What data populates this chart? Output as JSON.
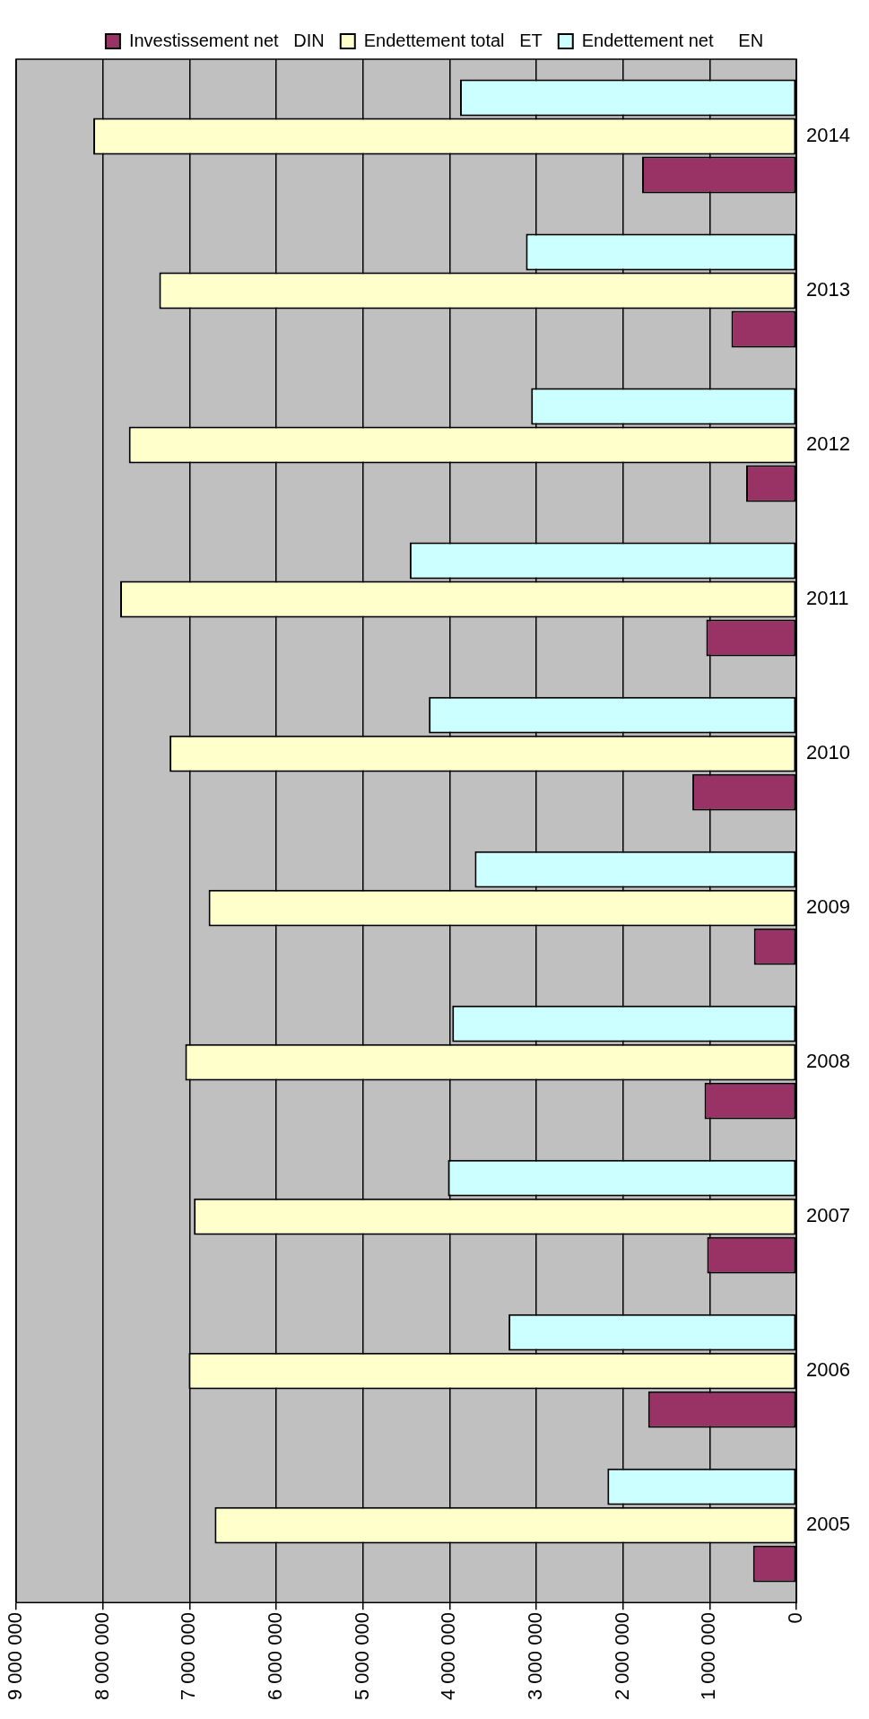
{
  "chart_data": {
    "type": "bar",
    "orientation": "horizontal",
    "categories": [
      "2014",
      "2013",
      "2012",
      "2011",
      "2010",
      "2009",
      "2008",
      "2007",
      "2006",
      "2005"
    ],
    "series": [
      {
        "name": "Endettement net     EN",
        "color": "#ccffff",
        "values": [
          3880000,
          3120000,
          3060000,
          4460000,
          4240000,
          3710000,
          3970000,
          4020000,
          3320000,
          2180000
        ]
      },
      {
        "name": "Endettement total   ET",
        "color": "#ffffcc",
        "values": [
          8110000,
          7350000,
          7700000,
          7800000,
          7230000,
          6780000,
          7050000,
          6950000,
          7010000,
          6710000
        ]
      },
      {
        "name": "Investissement net   DIN",
        "color": "#993366",
        "values": [
          1780000,
          750000,
          580000,
          1040000,
          1200000,
          490000,
          1060000,
          1030000,
          1710000,
          500000
        ]
      }
    ],
    "xlim": [
      9000000,
      0
    ],
    "xticks": [
      {
        "value": 9000000,
        "label": "9 000 000"
      },
      {
        "value": 8000000,
        "label": "8 000 000"
      },
      {
        "value": 7000000,
        "label": "7 000 000"
      },
      {
        "value": 6000000,
        "label": "6 000 000"
      },
      {
        "value": 5000000,
        "label": "5 000 000"
      },
      {
        "value": 4000000,
        "label": "4 000 000"
      },
      {
        "value": 3000000,
        "label": "3 000 000"
      },
      {
        "value": 2000000,
        "label": "2 000 000"
      },
      {
        "value": 1000000,
        "label": "1 000 000"
      },
      0
    ],
    "grid": "x",
    "legend": "top"
  }
}
